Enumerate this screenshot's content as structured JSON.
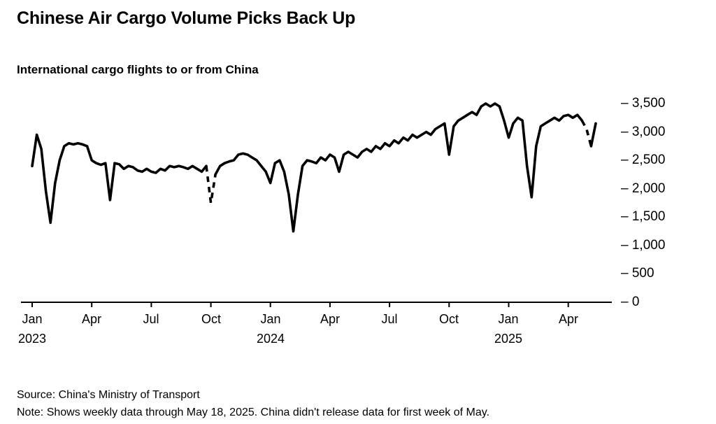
{
  "header": {
    "title": "Chinese Air Cargo Volume Picks Back Up",
    "subtitle": "International cargo flights to or from China"
  },
  "footer": {
    "source": "Source: China's Ministry of Transport",
    "note": "Note: Shows weekly data through May 18, 2025. China didn't release data for first week of May."
  },
  "colors": {
    "line": "#000000",
    "text": "#000000",
    "background": "#ffffff"
  },
  "chart_data": {
    "type": "line",
    "title": "Chinese Air Cargo Volume Picks Back Up",
    "subtitle": "International cargo flights to or from China",
    "frequency": "weekly",
    "x_range": [
      "Jan 2023",
      "May 18, 2025"
    ],
    "ylim": [
      0,
      3600
    ],
    "y_ticks": [
      0,
      500,
      1000,
      1500,
      2000,
      2500,
      3000,
      3500
    ],
    "grid": false,
    "legend": "none",
    "line_color": "#000000",
    "dashed_segments": [
      [
        38,
        40
      ],
      [
        120,
        122
      ]
    ],
    "dashed_meaning": "interpolated across unreleased data (Oct 2023 holiday week, first week of May 2025)",
    "x_ticks": [
      {
        "index": 0,
        "label": "Jan",
        "year": "2023"
      },
      {
        "index": 13,
        "label": "Apr"
      },
      {
        "index": 26,
        "label": "Jul"
      },
      {
        "index": 39,
        "label": "Oct"
      },
      {
        "index": 52,
        "label": "Jan",
        "year": "2024"
      },
      {
        "index": 65,
        "label": "Apr"
      },
      {
        "index": 78,
        "label": "Jul"
      },
      {
        "index": 91,
        "label": "Oct"
      },
      {
        "index": 104,
        "label": "Jan",
        "year": "2025"
      },
      {
        "index": 117,
        "label": "Apr"
      }
    ],
    "values": [
      2400,
      2950,
      2700,
      1950,
      1400,
      2100,
      2500,
      2750,
      2800,
      2780,
      2800,
      2780,
      2750,
      2500,
      2450,
      2420,
      2450,
      1800,
      2450,
      2430,
      2350,
      2400,
      2380,
      2320,
      2300,
      2350,
      2300,
      2280,
      2350,
      2320,
      2400,
      2380,
      2400,
      2380,
      2350,
      2400,
      2350,
      2300,
      2400,
      1750,
      2250,
      2400,
      2450,
      2480,
      2500,
      2600,
      2620,
      2600,
      2550,
      2500,
      2400,
      2300,
      2100,
      2450,
      2500,
      2300,
      1900,
      1250,
      1900,
      2400,
      2500,
      2480,
      2450,
      2550,
      2500,
      2600,
      2550,
      2300,
      2600,
      2650,
      2600,
      2550,
      2650,
      2700,
      2650,
      2750,
      2700,
      2800,
      2750,
      2850,
      2800,
      2900,
      2850,
      2950,
      2900,
      2950,
      3000,
      2950,
      3050,
      3100,
      3150,
      2600,
      3100,
      3200,
      3250,
      3300,
      3350,
      3300,
      3450,
      3500,
      3450,
      3500,
      3450,
      3200,
      2900,
      3150,
      3250,
      3200,
      2400,
      1850,
      2750,
      3100,
      3150,
      3200,
      3250,
      3200,
      3280,
      3300,
      3250,
      3300,
      3200,
      3050,
      2750,
      3150
    ]
  }
}
